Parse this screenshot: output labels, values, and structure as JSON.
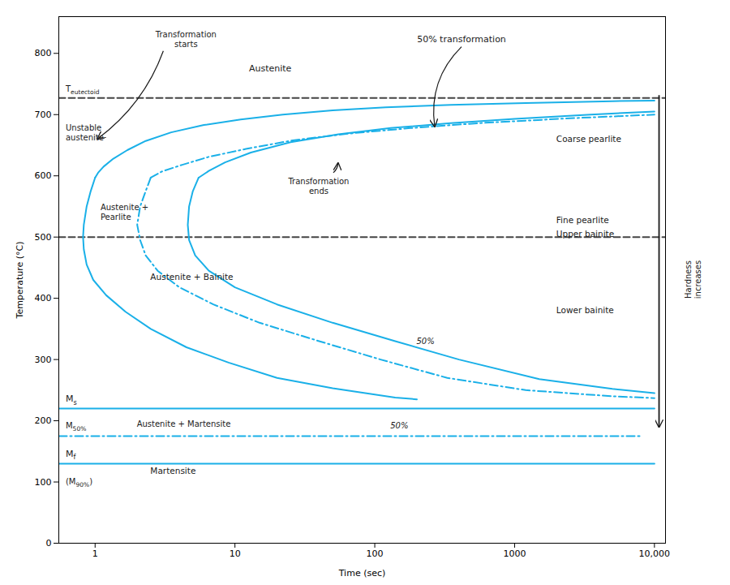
{
  "chart_data": {
    "type": "line",
    "xlabel": "Time (sec)",
    "ylabel": "Temperature (°C)",
    "log": "x",
    "grid": false,
    "xlim": [
      0.55,
      12000
    ],
    "xticks": [
      1,
      10,
      100,
      1000,
      {
        "value": 10000,
        "label": "10,000"
      }
    ],
    "ylim": [
      0,
      860
    ],
    "yticks": [
      0,
      100,
      200,
      300,
      400,
      500,
      600,
      700,
      800
    ],
    "series": [
      {
        "x": [
          0.55,
          12000
        ],
        "values": [
          727,
          727
        ],
        "color": "#444444",
        "line_style": "dashed"
      },
      {
        "x": [
          0.55,
          12000
        ],
        "values": [
          500,
          500
        ],
        "color": "#444444",
        "line_style": "dashed"
      },
      {
        "x": [
          0.55,
          10000
        ],
        "values": [
          220,
          220
        ],
        "color": "#1ab0e8",
        "line_style": "solid"
      },
      {
        "x": [
          0.55,
          8000
        ],
        "values": [
          175,
          175
        ],
        "color": "#1ab0e8",
        "line_style": "dashdot"
      },
      {
        "x": [
          0.55,
          10000
        ],
        "values": [
          130,
          130
        ],
        "color": "#1ab0e8",
        "line_style": "solid"
      },
      {
        "x": [
          1.0,
          1.05,
          1.15,
          1.35,
          1.7,
          2.3,
          3.5,
          6.0,
          11.0,
          22.0,
          50.0,
          120.0,
          350.0,
          1200.0,
          5000.0,
          10000.0
        ],
        "values": [
          597,
          605,
          615,
          628,
          642,
          657,
          671,
          683,
          692,
          700,
          707,
          712,
          716,
          719,
          722,
          723
        ],
        "color": "#1ab0e8",
        "line_style": "solid"
      },
      {
        "x": [
          1.0,
          0.93,
          0.87,
          0.83,
          0.82,
          0.83,
          0.87,
          0.97,
          1.2,
          1.65,
          2.5,
          4.5,
          9.0,
          20.0,
          50.0,
          140.0,
          200.0
        ],
        "values": [
          597,
          575,
          550,
          520,
          500,
          480,
          455,
          430,
          405,
          378,
          350,
          320,
          295,
          270,
          253,
          238,
          235
        ],
        "color": "#1ab0e8",
        "line_style": "solid"
      },
      {
        "x": [
          5.5,
          6.5,
          8.5,
          13.0,
          25.0,
          55.0,
          130.0,
          350.0,
          1000.0,
          3500.0,
          10000.0
        ],
        "values": [
          597,
          608,
          622,
          638,
          655,
          668,
          678,
          686,
          693,
          700,
          705
        ],
        "color": "#1ab0e8",
        "line_style": "solid"
      },
      {
        "x": [
          5.5,
          5.0,
          4.7,
          4.6,
          4.7,
          5.2,
          6.5,
          10.0,
          20.0,
          50.0,
          140.0,
          400.0,
          1500.0,
          5000.0,
          10000.0
        ],
        "values": [
          597,
          575,
          550,
          520,
          495,
          470,
          445,
          418,
          390,
          360,
          330,
          300,
          268,
          252,
          245
        ],
        "color": "#1ab0e8",
        "line_style": "solid"
      },
      {
        "x": [
          2.5,
          3.0,
          4.2,
          6.5,
          12.0,
          26.0,
          65.0,
          180.0,
          550.0,
          2500.0,
          10000.0
        ],
        "values": [
          597,
          607,
          618,
          631,
          644,
          658,
          669,
          678,
          686,
          694,
          700
        ],
        "color": "#1ab0e8",
        "line_style": "dashdot"
      },
      {
        "x": [
          2.5,
          2.3,
          2.1,
          2.0,
          2.1,
          2.3,
          2.8,
          4.0,
          7.0,
          15.0,
          40.0,
          110.0,
          330.0,
          1200.0,
          5000.0,
          10000.0
        ],
        "values": [
          597,
          575,
          550,
          520,
          495,
          470,
          445,
          418,
          390,
          360,
          330,
          300,
          270,
          250,
          240,
          237
        ],
        "color": "#1ab0e8",
        "line_style": "dashdot"
      }
    ],
    "annotations": [
      {
        "text": "Teutectoid",
        "sub": "eutectoid",
        "x": 0.62,
        "y": 733
      },
      {
        "text": "Unstable\naustenite",
        "x": 0.62,
        "y": 685
      },
      {
        "text": "Austenite",
        "x": 18,
        "y": 770
      },
      {
        "text": "Transformation\nstarts",
        "x": 4.5,
        "y": 810
      },
      {
        "text": "50% transformation",
        "x": 420,
        "y": 818
      },
      {
        "text": "Transformation\nends",
        "x": 40,
        "y": 570
      },
      {
        "text": "Coarse pearlite",
        "x": 2000,
        "y": 660
      },
      {
        "text": "Fine pearlite",
        "x": 2000,
        "y": 527
      },
      {
        "text": "Upper bainite",
        "x": 2000,
        "y": 505
      },
      {
        "text": "Lower bainite",
        "x": 2000,
        "y": 380
      },
      {
        "text": "Austenite +\nPearlite",
        "x": 1.1,
        "y": 555
      },
      {
        "text": "Austenite + Bainite",
        "x": 2.5,
        "y": 430
      },
      {
        "text": "50%",
        "x": 200,
        "y": 325
      },
      {
        "text": "Ms",
        "sub": "s",
        "x": 0.62,
        "y": 226
      },
      {
        "text": "M50%",
        "sub": "50%",
        "x": 0.62,
        "y": 183
      },
      {
        "text": "Mf",
        "sub": "f",
        "x": 0.62,
        "y": 137
      },
      {
        "text": "(M90%)",
        "sub": "90%",
        "x": 0.62,
        "y": 108
      },
      {
        "text": "Austenite + Martensite",
        "x": 2.0,
        "y": 202
      },
      {
        "text": "50%",
        "x": 130,
        "y": 183
      },
      {
        "text": "Martensite",
        "x": 2.5,
        "y": 112
      },
      {
        "text": "Hardness\nincreases"
      }
    ]
  }
}
